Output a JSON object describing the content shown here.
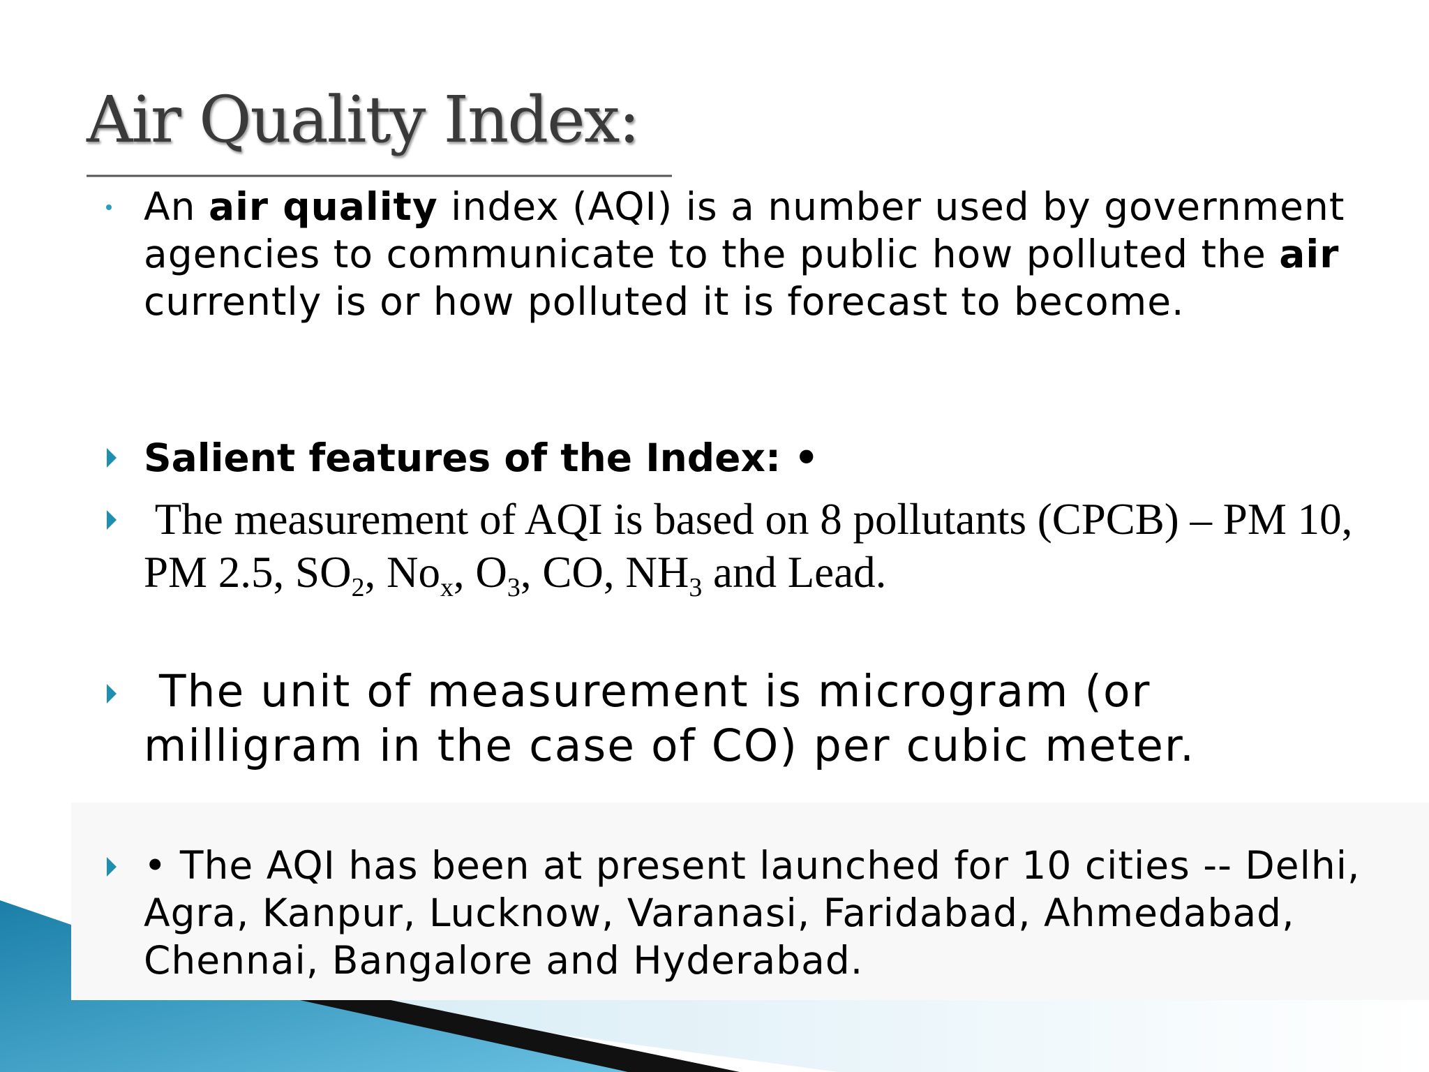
{
  "title": "Air Quality Index:",
  "bullets": [
    {
      "parts": [
        "An ",
        "air quality",
        " index (AQI) is a number used by government agencies to communicate to the public how polluted the ",
        "air",
        " currently is or how polluted it is forecast to become."
      ]
    },
    {
      "parts": [
        "Salient features of the Index: •"
      ]
    },
    {
      "parts": [
        "The measurement of AQI is based on 8 pollutants (CPCB) – PM 10, PM 2.5, SO",
        "2",
        ", No",
        "x",
        ", O",
        "3",
        ", CO, NH",
        "3",
        " and Lead."
      ]
    },
    {
      "parts": [
        "The unit of measurement is microgram (or milligram in the case of CO) per cubic meter."
      ]
    },
    {
      "parts": [
        "• The AQI has been at present launched for 10 cities -- Delhi, Agra, Kanpur, Lucknow, Varanasi, Faridabad, Ahmedabad, Chennai, Bangalore and Hyderabad."
      ]
    }
  ]
}
